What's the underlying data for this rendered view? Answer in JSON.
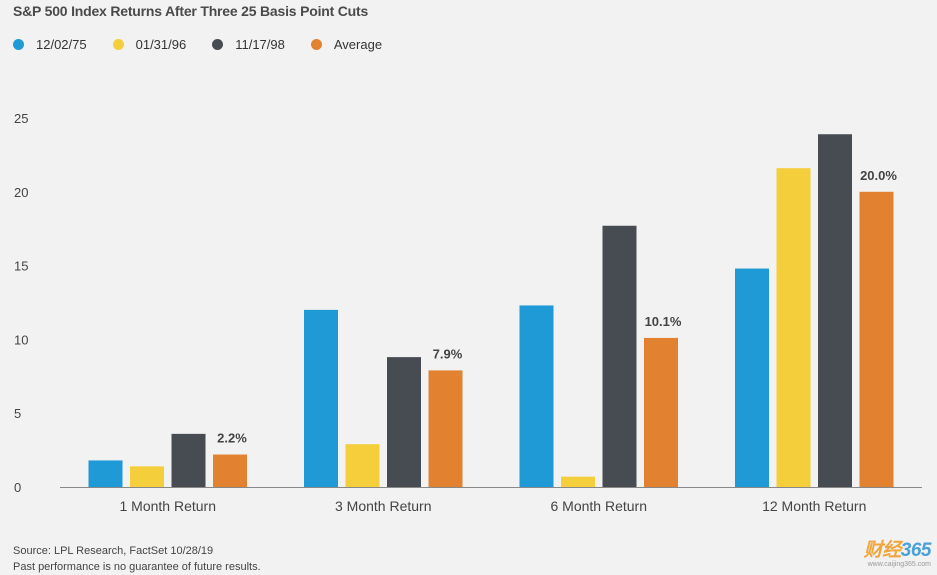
{
  "chart_data": {
    "type": "bar",
    "title": "S&P 500 Index Returns After Three 25 Basis Point Cuts",
    "categories": [
      "1 Month Return",
      "3 Month Return",
      "6 Month Return",
      "12 Month Return"
    ],
    "series": [
      {
        "name": "12/02/75",
        "color": "#1f9ad6",
        "values": [
          1.8,
          12.0,
          12.3,
          14.8
        ]
      },
      {
        "name": "01/31/96",
        "color": "#f4ce3b",
        "values": [
          1.4,
          2.9,
          0.7,
          21.6
        ]
      },
      {
        "name": "11/17/98",
        "color": "#474c52",
        "values": [
          3.6,
          8.8,
          17.7,
          23.9
        ]
      },
      {
        "name": "Average",
        "color": "#e2812f",
        "values": [
          2.2,
          7.9,
          10.1,
          20.0
        ]
      }
    ],
    "data_labels": [
      "2.2%",
      "7.9%",
      "10.1%",
      "20.0%"
    ],
    "ylim": [
      0,
      25
    ],
    "yticks": [
      0,
      5,
      10,
      15,
      20,
      25
    ],
    "xlabel": "",
    "ylabel": "",
    "grid": false,
    "legend_position": "top-left"
  },
  "footer": {
    "source": "Source: LPL Research, FactSet  10/28/19",
    "disclaimer": "Past performance is no guarantee of future results."
  },
  "watermark": {
    "brand_a": "财经",
    "brand_b": "365",
    "url": "www.caijing365.com"
  }
}
